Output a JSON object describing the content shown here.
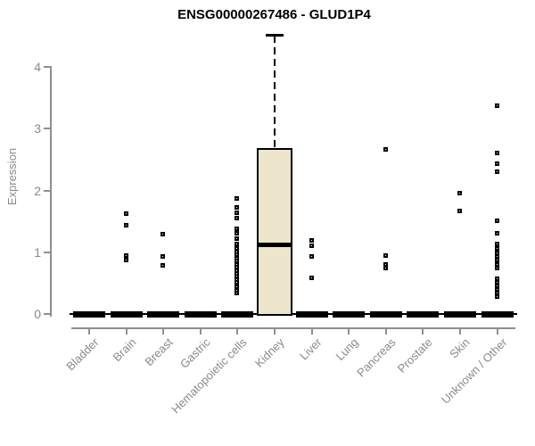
{
  "colors": {
    "axis": "#8f8f8f",
    "tick_label": "#8a8a8a",
    "title": "#000000",
    "box_fill": "#EDE6CD",
    "box_border": "#000000",
    "point": "#000000"
  },
  "chart_data": {
    "type": "box",
    "title": "ENSG00000267486 - GLUD1P4",
    "ylabel": "Expression",
    "xlabel": "",
    "ylim": [
      0,
      4.6
    ],
    "yticks": [
      0,
      1,
      2,
      3,
      4
    ],
    "grid": false,
    "legend": "none",
    "categories": [
      "Bladder",
      "Brain",
      "Breast",
      "Gastric",
      "Hematopoietic cells",
      "Kidney",
      "Liver",
      "Lung",
      "Pancreas",
      "Prostate",
      "Skin",
      "Unknown / Other"
    ],
    "boxes": [
      {
        "category": "Bladder",
        "q1": 0,
        "median": 0,
        "q3": 0,
        "whisker_low": 0,
        "whisker_high": 0,
        "outliers": []
      },
      {
        "category": "Brain",
        "q1": 0,
        "median": 0,
        "q3": 0,
        "whisker_low": 0,
        "whisker_high": 0,
        "outliers": [
          1.62,
          1.43,
          0.94,
          0.86
        ]
      },
      {
        "category": "Breast",
        "q1": 0,
        "median": 0,
        "q3": 0,
        "whisker_low": 0,
        "whisker_high": 0,
        "outliers": [
          1.29,
          0.92,
          0.78
        ]
      },
      {
        "category": "Gastric",
        "q1": 0,
        "median": 0,
        "q3": 0,
        "whisker_low": 0,
        "whisker_high": 0,
        "outliers": []
      },
      {
        "category": "Hematopoietic cells",
        "q1": 0,
        "median": 0,
        "q3": 0,
        "whisker_low": 0,
        "whisker_high": 0,
        "outliers": [
          1.86,
          1.72,
          1.63,
          1.54,
          1.37,
          1.3,
          1.21,
          1.13,
          1.06,
          1.0,
          0.95,
          0.9,
          0.85,
          0.8,
          0.75,
          0.7,
          0.65,
          0.6,
          0.55,
          0.5,
          0.44,
          0.38,
          0.33
        ]
      },
      {
        "category": "Kidney",
        "q1": 0,
        "median": 1.13,
        "q3": 2.68,
        "whisker_low": 0,
        "whisker_high": 4.5,
        "outliers": []
      },
      {
        "category": "Liver",
        "q1": 0,
        "median": 0,
        "q3": 0,
        "whisker_low": 0,
        "whisker_high": 0,
        "outliers": [
          1.18,
          1.1,
          0.92,
          0.58
        ]
      },
      {
        "category": "Lung",
        "q1": 0,
        "median": 0,
        "q3": 0,
        "whisker_low": 0,
        "whisker_high": 0,
        "outliers": []
      },
      {
        "category": "Pancreas",
        "q1": 0,
        "median": 0,
        "q3": 0,
        "whisker_low": 0,
        "whisker_high": 0,
        "outliers": [
          2.66,
          0.94,
          0.8,
          0.73
        ]
      },
      {
        "category": "Prostate",
        "q1": 0,
        "median": 0,
        "q3": 0,
        "whisker_low": 0,
        "whisker_high": 0,
        "outliers": []
      },
      {
        "category": "Skin",
        "q1": 0,
        "median": 0,
        "q3": 0,
        "whisker_low": 0,
        "whisker_high": 0,
        "outliers": [
          1.95,
          1.66
        ]
      },
      {
        "category": "Unknown / Other",
        "q1": 0,
        "median": 0,
        "q3": 0,
        "whisker_low": 0,
        "whisker_high": 0,
        "outliers": [
          3.36,
          2.6,
          2.43,
          2.3,
          1.5,
          1.3,
          1.12,
          1.05,
          0.98,
          0.92,
          0.86,
          0.8,
          0.74,
          0.56,
          0.5,
          0.45,
          0.39,
          0.33,
          0.27
        ]
      }
    ]
  }
}
